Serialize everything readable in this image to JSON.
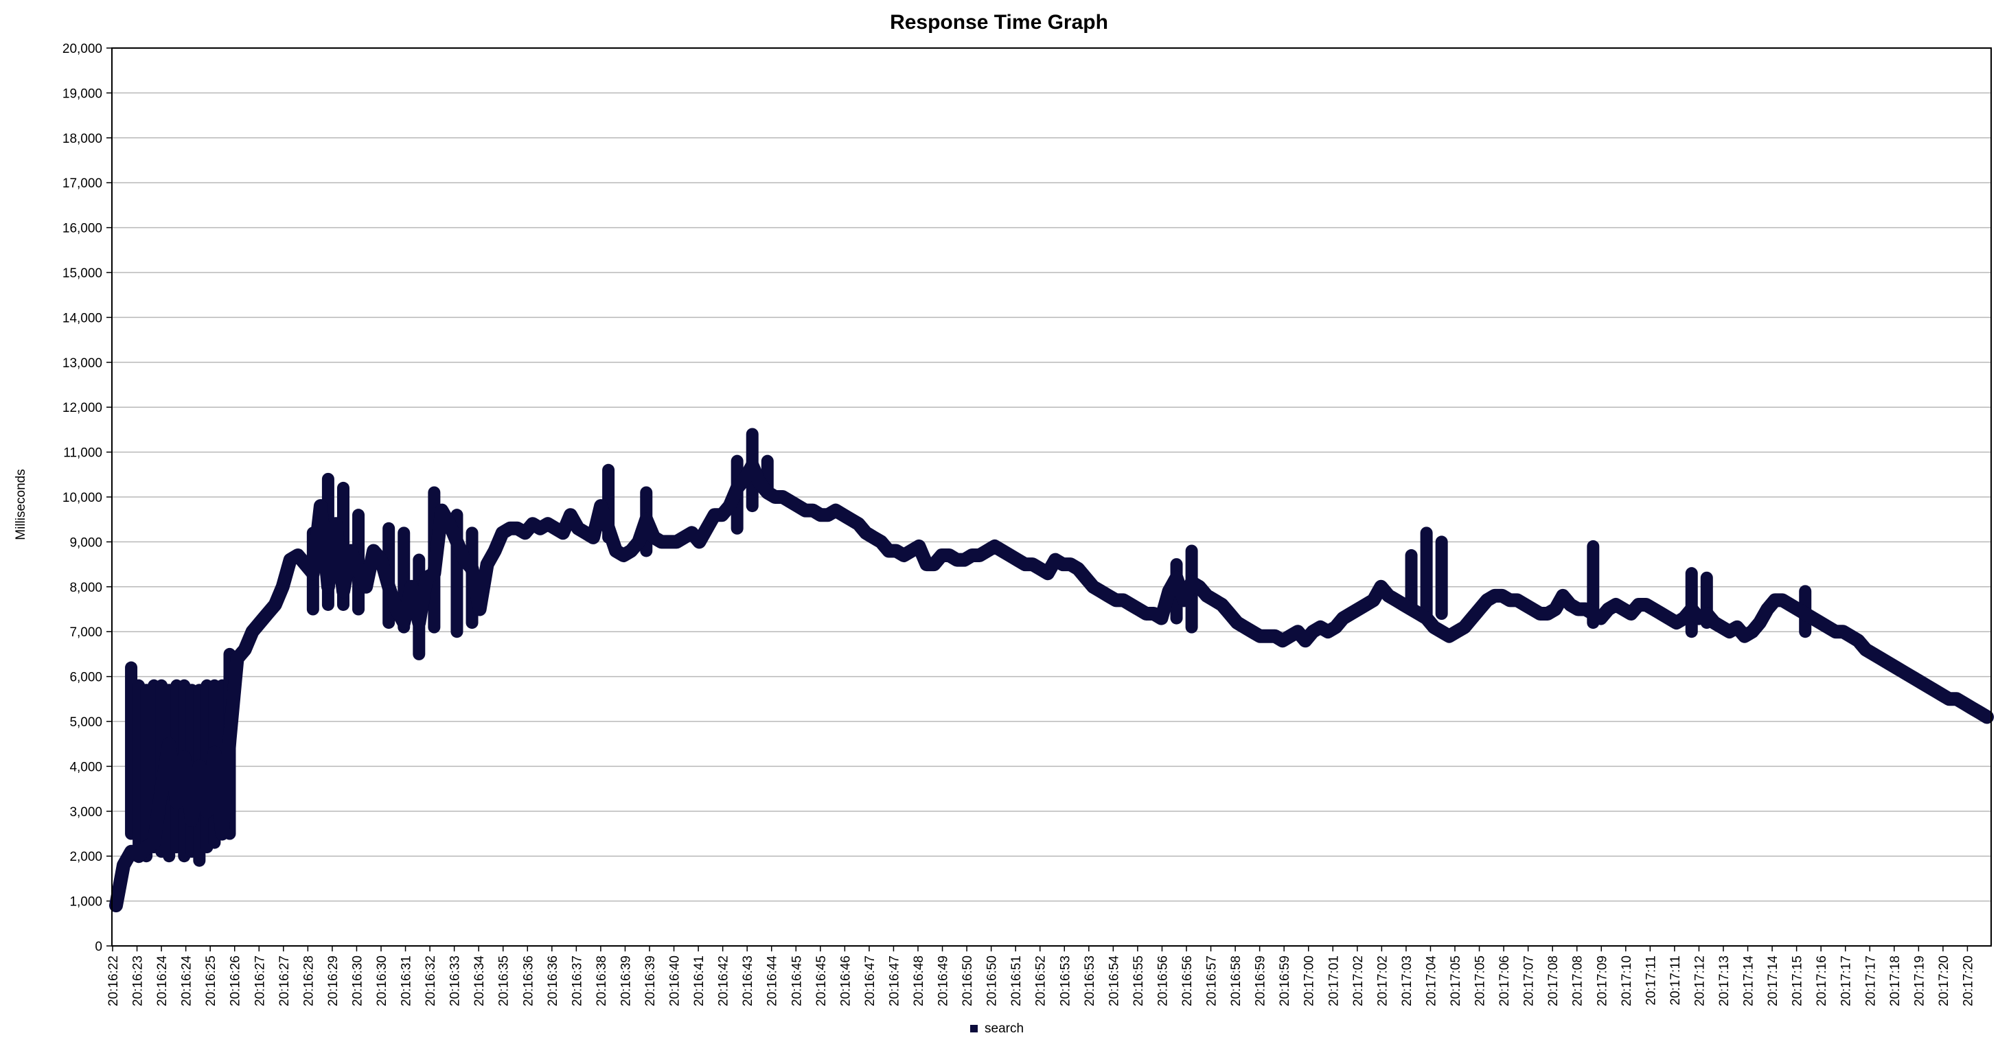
{
  "chart_data": {
    "type": "line",
    "title": "Response Time Graph",
    "xlabel": "",
    "ylabel": "Milliseconds",
    "ylim": [
      0,
      20000
    ],
    "y_ticks": [
      0,
      1000,
      2000,
      3000,
      4000,
      5000,
      6000,
      7000,
      8000,
      9000,
      10000,
      11000,
      12000,
      13000,
      14000,
      15000,
      16000,
      17000,
      18000,
      19000,
      20000
    ],
    "y_tick_labels": [
      "0",
      "1,000",
      "2,000",
      "3,000",
      "4,000",
      "5,000",
      "6,000",
      "7,000",
      "8,000",
      "9,000",
      "10,000",
      "11,000",
      "12,000",
      "13,000",
      "14,000",
      "15,000",
      "16,000",
      "17,000",
      "18,000",
      "19,000",
      "20,000"
    ],
    "x_tick_labels": [
      "20:16:22",
      "20:16:23",
      "20:16:24",
      "20:16:24",
      "20:16:25",
      "20:16:26",
      "20:16:27",
      "20:16:27",
      "20:16:28",
      "20:16:29",
      "20:16:30",
      "20:16:30",
      "20:16:31",
      "20:16:32",
      "20:16:33",
      "20:16:34",
      "20:16:35",
      "20:16:36",
      "20:16:36",
      "20:16:37",
      "20:16:38",
      "20:16:39",
      "20:16:39",
      "20:16:40",
      "20:16:41",
      "20:16:42",
      "20:16:43",
      "20:16:44",
      "20:16:45",
      "20:16:45",
      "20:16:46",
      "20:16:47",
      "20:16:47",
      "20:16:48",
      "20:16:49",
      "20:16:50",
      "20:16:50",
      "20:16:51",
      "20:16:52",
      "20:16:53",
      "20:16:53",
      "20:16:54",
      "20:16:55",
      "20:16:56",
      "20:16:56",
      "20:16:57",
      "20:16:58",
      "20:16:59",
      "20:16:59",
      "20:17:00",
      "20:17:01",
      "20:17:02",
      "20:17:02",
      "20:17:03",
      "20:17:04",
      "20:17:05",
      "20:17:05",
      "20:17:06",
      "20:17:07",
      "20:17:08",
      "20:17:08",
      "20:17:09",
      "20:17:10",
      "20:17:11",
      "20:17:11",
      "20:17:12",
      "20:17:13",
      "20:17:14",
      "20:17:14",
      "20:17:15",
      "20:17:16",
      "20:17:17",
      "20:17:17",
      "20:17:18",
      "20:17:19",
      "20:17:20",
      "20:17:20"
    ],
    "grid": true,
    "legend": "bottom-center",
    "series": [
      {
        "name": "search",
        "color": "#0b0b3b",
        "values": [
          900,
          1800,
          2100,
          2000,
          2200,
          2300,
          3500,
          4500,
          3200,
          4200,
          2800,
          4000,
          3000,
          4300,
          2500,
          4600,
          6400,
          6600,
          7000,
          7200,
          7400,
          7600,
          8000,
          8600,
          8700,
          8500,
          8300,
          9800,
          8000,
          9400,
          7900,
          8800,
          8400,
          8000,
          8800,
          8600,
          8000,
          7500,
          7200,
          8000,
          7200,
          8200,
          8300,
          9700,
          9400,
          9000,
          8600,
          8400,
          7500,
          8500,
          8800,
          9200,
          9300,
          9300,
          9200,
          9400,
          9300,
          9400,
          9300,
          9200,
          9600,
          9300,
          9200,
          9100,
          9800,
          9300,
          8800,
          8700,
          8800,
          9000,
          9500,
          9100,
          9000,
          9000,
          9000,
          9100,
          9200,
          9000,
          9300,
          9600,
          9600,
          9800,
          10200,
          10400,
          10700,
          10300,
          10100,
          10000,
          10000,
          9900,
          9800,
          9700,
          9700,
          9600,
          9600,
          9700,
          9600,
          9500,
          9400,
          9200,
          9100,
          9000,
          8800,
          8800,
          8700,
          8800,
          8900,
          8500,
          8500,
          8700,
          8700,
          8600,
          8600,
          8700,
          8700,
          8800,
          8900,
          8800,
          8700,
          8600,
          8500,
          8500,
          8400,
          8300,
          8600,
          8500,
          8500,
          8400,
          8200,
          8000,
          7900,
          7800,
          7700,
          7700,
          7600,
          7500,
          7400,
          7400,
          7300,
          7900,
          8200,
          7700,
          8100,
          8000,
          7800,
          7700,
          7600,
          7400,
          7200,
          7100,
          7000,
          6900,
          6900,
          6900,
          6800,
          6900,
          7000,
          6800,
          7000,
          7100,
          7000,
          7100,
          7300,
          7400,
          7500,
          7600,
          7700,
          8000,
          7800,
          7700,
          7600,
          7500,
          7400,
          7300,
          7100,
          7000,
          6900,
          7000,
          7100,
          7300,
          7500,
          7700,
          7800,
          7800,
          7700,
          7700,
          7600,
          7500,
          7400,
          7400,
          7500,
          7800,
          7600,
          7500,
          7500,
          7400,
          7300,
          7500,
          7600,
          7500,
          7400,
          7600,
          7600,
          7500,
          7400,
          7300,
          7200,
          7300,
          7500,
          7300,
          7400,
          7200,
          7100,
          7000,
          7100,
          6900,
          7000,
          7200,
          7500,
          7700,
          7700,
          7600,
          7500,
          7400,
          7300,
          7200,
          7100,
          7000,
          7000,
          6900,
          6800,
          6600,
          6500,
          6400,
          6300,
          6200,
          6100,
          6000,
          5900,
          5800,
          5700,
          5600,
          5500,
          5500,
          5400,
          5300,
          5200,
          5100
        ]
      }
    ],
    "spikes": [
      [
        2,
        2500,
        6200
      ],
      [
        3,
        2200,
        5800
      ],
      [
        4,
        2000,
        5700
      ],
      [
        5,
        2200,
        5800
      ],
      [
        6,
        2100,
        5800
      ],
      [
        7,
        2000,
        5700
      ],
      [
        8,
        2200,
        5800
      ],
      [
        9,
        2000,
        5800
      ],
      [
        10,
        2100,
        5700
      ],
      [
        11,
        1900,
        5700
      ],
      [
        12,
        2200,
        5800
      ],
      [
        13,
        2300,
        5800
      ],
      [
        14,
        2500,
        5800
      ],
      [
        15,
        2500,
        6500
      ],
      [
        26,
        7500,
        9200
      ],
      [
        28,
        7600,
        10400
      ],
      [
        30,
        7600,
        10200
      ],
      [
        32,
        7500,
        9600
      ],
      [
        36,
        7200,
        9300
      ],
      [
        38,
        7100,
        9200
      ],
      [
        40,
        6500,
        8600
      ],
      [
        42,
        7100,
        10100
      ],
      [
        45,
        7000,
        9600
      ],
      [
        47,
        7200,
        9200
      ],
      [
        65,
        9100,
        10600
      ],
      [
        70,
        8800,
        10100
      ],
      [
        82,
        9300,
        10800
      ],
      [
        84,
        9800,
        11400
      ],
      [
        86,
        10200,
        10800
      ],
      [
        140,
        7300,
        8500
      ],
      [
        142,
        7100,
        8800
      ],
      [
        171,
        7500,
        8700
      ],
      [
        173,
        7300,
        9200
      ],
      [
        175,
        7400,
        9000
      ],
      [
        195,
        7200,
        8900
      ],
      [
        208,
        7000,
        8300
      ],
      [
        210,
        7200,
        8200
      ],
      [
        223,
        7000,
        7900
      ]
    ]
  },
  "legend": {
    "series_name": "search",
    "color": "#0b0b3b"
  }
}
